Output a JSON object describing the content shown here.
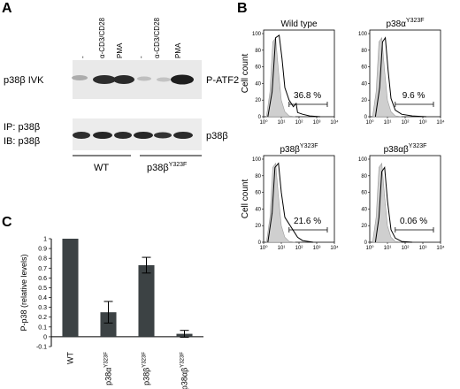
{
  "panel_a": {
    "letter": "A",
    "lane_labels": [
      "-",
      "α-CD3/CD28",
      "PMA",
      "-",
      "α-CD3/CD28",
      "PMA"
    ],
    "blot1_left": "p38β IVK",
    "blot1_right": "P-ATF2",
    "blot2_left_line1": "IP: p38β",
    "blot2_left_line2": "IB: p38β",
    "blot2_right": "p38β",
    "group_labels": [
      "WT",
      "p38β"
    ],
    "group2_superscript": "Y323F"
  },
  "panel_b": {
    "letter": "B",
    "y_label": "Cell count",
    "x_ticks": [
      "10⁰",
      "10¹",
      "10²",
      "10³",
      "10⁴"
    ],
    "y_ticks": [
      "0",
      "20",
      "40",
      "60",
      "80",
      "100"
    ],
    "plots": [
      {
        "title": "Wild type",
        "title_sup": "",
        "percent": "36.8 %"
      },
      {
        "title": "p38α",
        "title_sup": "Y323F",
        "percent": "9.6 %"
      },
      {
        "title": "p38β",
        "title_sup": "Y323F",
        "percent": "21.6 %"
      },
      {
        "title": "p38αβ",
        "title_sup": "Y323F",
        "percent": "0.06 %"
      }
    ]
  },
  "panel_c": {
    "letter": "C",
    "y_label": "P-p38 (relative levels)",
    "y_ticks": [
      "-0.1",
      "0",
      "0.1",
      "0.2",
      "0.3",
      "0.4",
      "0.5",
      "0.6",
      "0.7",
      "0.8",
      "0.9",
      "1"
    ],
    "bar_color": "#3c4244"
  },
  "chart_data": {
    "type": "bar",
    "categories": [
      "WT",
      "p38α Y323F",
      "p38β Y323F",
      "p38αβ Y323F"
    ],
    "values": [
      1.0,
      0.25,
      0.73,
      0.03
    ],
    "errors": [
      0,
      0.11,
      0.08,
      0.035
    ],
    "ylabel": "P-p38 (relative levels)",
    "ylim": [
      -0.1,
      1.0
    ]
  }
}
